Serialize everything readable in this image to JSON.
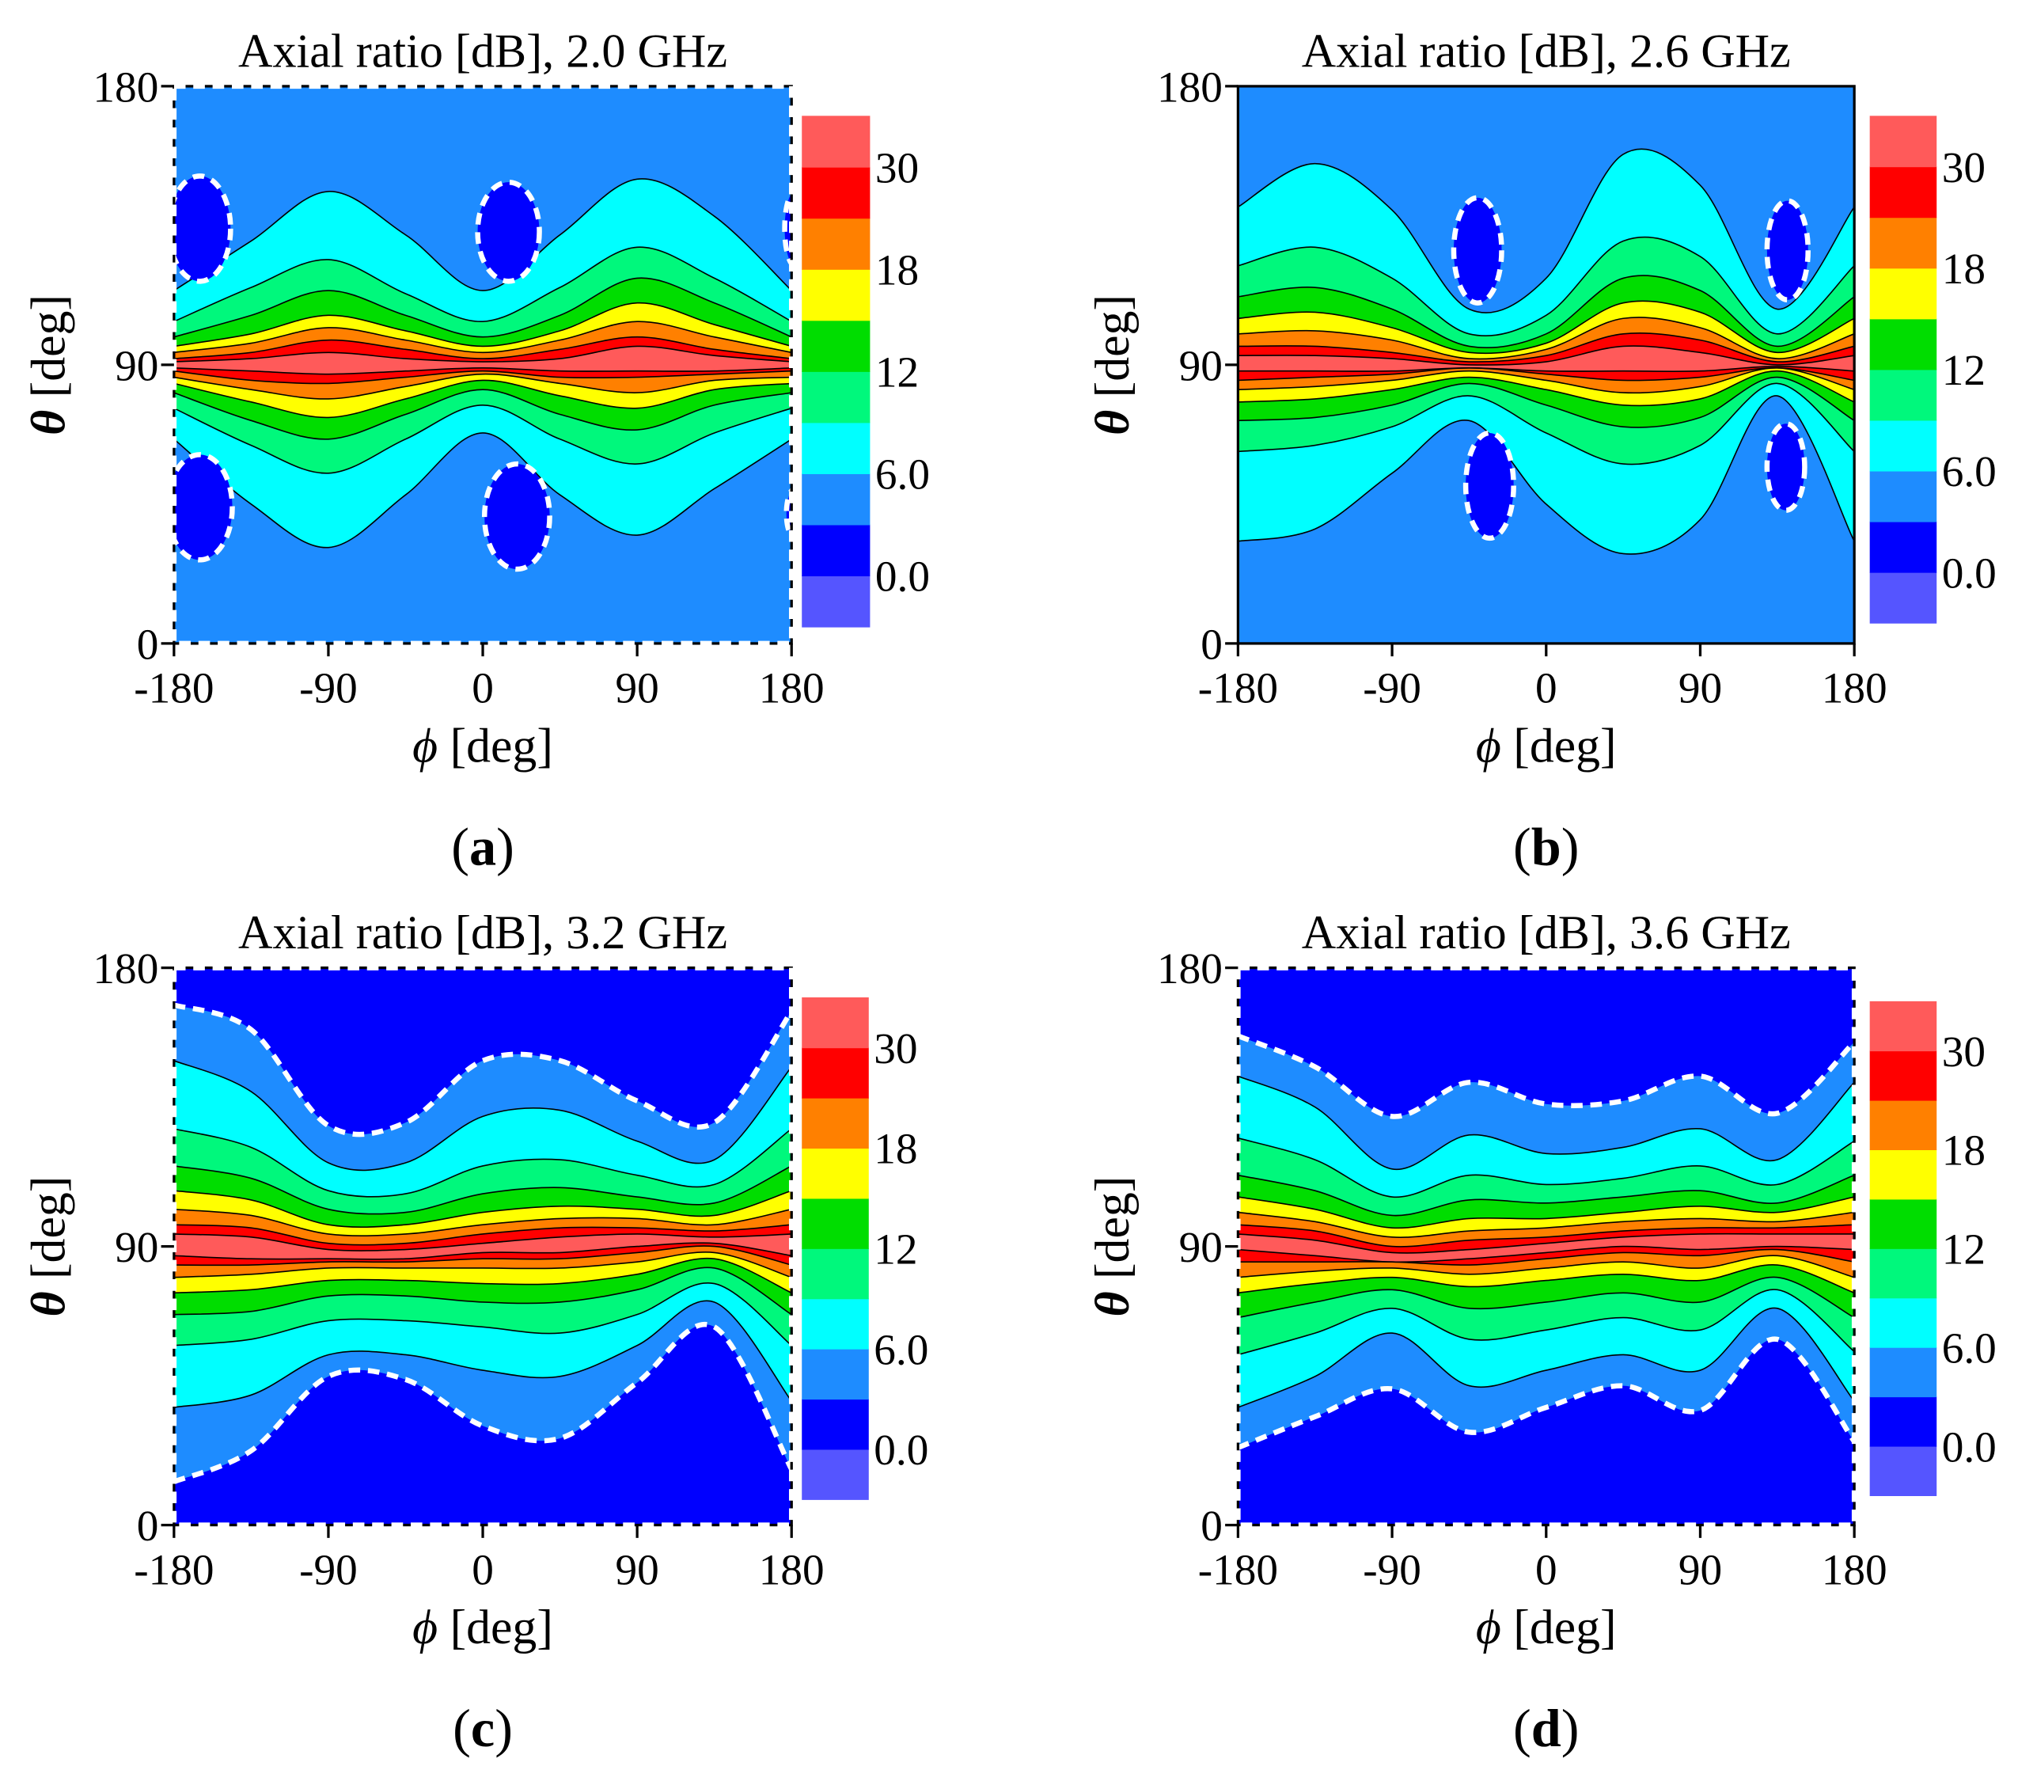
{
  "chart_data": [
    {
      "type": "contour",
      "title": "Axial ratio [dB], 2.0 GHz",
      "xlabel": "ϕ [deg]",
      "ylabel": "θ [deg]",
      "panel": "(a)",
      "xlim": [
        -180,
        180
      ],
      "ylim": [
        0,
        180
      ],
      "xticks": [
        -180,
        -90,
        0,
        90,
        180
      ],
      "yticks": [
        0,
        90,
        180
      ],
      "edge_dashed": true,
      "x": [
        -180,
        -135,
        -90,
        -45,
        0,
        45,
        90,
        135,
        180
      ],
      "background_level": 3,
      "island_level": 0,
      "contours": [
        {
          "level": 6,
          "upper": [
            114,
            130,
            146,
            132,
            114,
            132,
            150,
            138,
            114
          ],
          "lower": [
            66,
            45,
            31,
            48,
            68,
            48,
            35,
            50,
            66
          ]
        },
        {
          "level": 9,
          "upper": [
            104,
            115,
            124,
            113,
            104,
            115,
            128,
            118,
            104
          ],
          "lower": [
            76,
            64,
            55,
            66,
            77,
            66,
            58,
            68,
            76
          ]
        },
        {
          "level": 12,
          "upper": [
            99,
            106,
            114,
            106,
            99,
            106,
            118,
            110,
            99
          ],
          "lower": [
            81,
            72,
            66,
            74,
            82,
            74,
            69,
            77,
            81
          ]
        },
        {
          "level": 15,
          "upper": [
            96,
            100,
            106,
            101,
            96,
            101,
            110,
            103,
            96
          ],
          "lower": [
            84,
            78,
            73,
            79,
            85,
            80,
            76,
            82,
            84
          ]
        },
        {
          "level": 18,
          "upper": [
            94,
            97,
            102,
            98,
            94,
            98,
            104,
            99,
            94
          ],
          "lower": [
            86,
            82,
            79,
            83,
            87,
            84,
            81,
            85,
            86
          ]
        },
        {
          "level": 24,
          "upper": [
            92,
            94,
            98,
            95,
            92,
            95,
            99,
            95,
            92
          ],
          "lower": [
            88,
            85,
            84,
            86,
            88,
            86,
            86,
            87,
            88
          ]
        },
        {
          "level": 30,
          "upper": [
            91,
            92,
            94,
            92,
            91,
            92,
            96,
            93,
            91
          ],
          "lower": [
            89,
            88,
            87,
            88,
            89,
            88,
            88,
            88,
            89
          ]
        }
      ],
      "islands": [
        {
          "x": -165,
          "y": 134,
          "rx": 18,
          "ry": 17
        },
        {
          "x": 15,
          "y": 133,
          "rx": 18,
          "ry": 16
        },
        {
          "x": 182,
          "y": 134,
          "rx": 6,
          "ry": 12
        },
        {
          "x": -165,
          "y": 44,
          "rx": 19,
          "ry": 17
        },
        {
          "x": 20,
          "y": 41,
          "rx": 19,
          "ry": 17
        },
        {
          "x": 182,
          "y": 42,
          "rx": 5,
          "ry": 8
        }
      ],
      "colorbar": {
        "levels": [
          -3,
          0,
          3,
          6,
          9,
          12,
          15,
          18,
          24,
          30,
          36
        ],
        "colors": [
          "#5555ff",
          "#0000ff",
          "#1e8cff",
          "#00ffff",
          "#00f87c",
          "#00dd00",
          "#ffff00",
          "#ff8000",
          "#ff0000",
          "#ff5a5a"
        ],
        "ticks": [
          {
            "value": 0,
            "label": "0.0"
          },
          {
            "value": 6,
            "label": "6.0"
          },
          12,
          18,
          30
        ]
      }
    },
    {
      "type": "contour",
      "title": "Axial ratio [dB], 2.6 GHz",
      "xlabel": "ϕ [deg]",
      "ylabel": "θ [deg]",
      "panel": "(b)",
      "xlim": [
        -180,
        180
      ],
      "ylim": [
        0,
        180
      ],
      "xticks": [
        -180,
        -90,
        0,
        90,
        180
      ],
      "yticks": [
        0,
        90,
        180
      ],
      "edge_dashed": false,
      "x": [
        -180,
        -135,
        -90,
        -45,
        0,
        45,
        90,
        135,
        180
      ],
      "background_level": 3,
      "island_level": 0,
      "contours": [
        {
          "level": 6,
          "upper": [
            141,
            155,
            140,
            108,
            118,
            158,
            148,
            108,
            141
          ],
          "lower": [
            33,
            37,
            55,
            72,
            45,
            29,
            40,
            80,
            33
          ]
        },
        {
          "level": 9,
          "upper": [
            122,
            128,
            118,
            100,
            106,
            130,
            125,
            100,
            122
          ],
          "lower": [
            62,
            64,
            70,
            80,
            68,
            58,
            64,
            84,
            62
          ]
        },
        {
          "level": 12,
          "upper": [
            112,
            115,
            108,
            96,
            100,
            118,
            114,
            96,
            112
          ],
          "lower": [
            72,
            73,
            77,
            84,
            77,
            70,
            73,
            86,
            72
          ]
        },
        {
          "level": 15,
          "upper": [
            105,
            107,
            102,
            94,
            97,
            110,
            107,
            94,
            105
          ],
          "lower": [
            78,
            79,
            82,
            86,
            82,
            77,
            79,
            88,
            78
          ]
        },
        {
          "level": 18,
          "upper": [
            100,
            101,
            98,
            92,
            95,
            105,
            102,
            92,
            100
          ],
          "lower": [
            82,
            83,
            85,
            88,
            85,
            81,
            83,
            89,
            82
          ]
        },
        {
          "level": 24,
          "upper": [
            96,
            96,
            94,
            91,
            93,
            100,
            98,
            91,
            96
          ],
          "lower": [
            85,
            86,
            87,
            89,
            87,
            85,
            86,
            89,
            85
          ]
        },
        {
          "level": 30,
          "upper": [
            93,
            93,
            92,
            90,
            91,
            96,
            94,
            90,
            93
          ],
          "lower": [
            88,
            88,
            88,
            89,
            88,
            88,
            88,
            89.5,
            88
          ]
        }
      ],
      "islands": [
        {
          "x": -40,
          "y": 127,
          "rx": 14,
          "ry": 17
        },
        {
          "x": 141,
          "y": 127,
          "rx": 12,
          "ry": 16
        },
        {
          "x": -33,
          "y": 51,
          "rx": 14,
          "ry": 17
        },
        {
          "x": 140,
          "y": 57,
          "rx": 11,
          "ry": 14
        }
      ],
      "colorbar": {
        "levels": [
          -3,
          0,
          3,
          6,
          9,
          12,
          15,
          18,
          24,
          30,
          36
        ],
        "colors": [
          "#5555ff",
          "#0000ff",
          "#1e8cff",
          "#00ffff",
          "#00f87c",
          "#00dd00",
          "#ffff00",
          "#ff8000",
          "#ff0000",
          "#ff5a5a"
        ],
        "ticks": [
          {
            "value": 0,
            "label": "0.0"
          },
          {
            "value": 6,
            "label": "6.0"
          },
          12,
          18,
          30
        ]
      }
    },
    {
      "type": "contour",
      "title": "Axial ratio [dB], 3.2 GHz",
      "xlabel": "ϕ [deg]",
      "ylabel": "θ [deg]",
      "panel": "(c)",
      "xlim": [
        -180,
        180
      ],
      "ylim": [
        0,
        180
      ],
      "xticks": [
        -180,
        -90,
        0,
        90,
        180
      ],
      "yticks": [
        0,
        90,
        180
      ],
      "edge_dashed": true,
      "x": [
        -180,
        -135,
        -90,
        -45,
        0,
        45,
        90,
        135,
        180
      ],
      "background_level": 0,
      "island_level": 0,
      "contours": [
        {
          "level": 3,
          "upper": [
            168,
            160,
            129,
            130,
            150,
            150,
            137,
            130,
            166
          ],
          "lower": [
            14,
            24,
            48,
            47,
            32,
            28,
            46,
            64,
            18
          ],
          "dashed": true
        },
        {
          "level": 6,
          "upper": [
            150,
            140,
            117,
            117,
            132,
            134,
            124,
            118,
            148
          ],
          "lower": [
            38,
            42,
            55,
            55,
            50,
            48,
            58,
            72,
            40
          ]
        },
        {
          "level": 9,
          "upper": [
            128,
            122,
            108,
            107,
            116,
            118,
            113,
            110,
            128
          ],
          "lower": [
            58,
            60,
            66,
            66,
            64,
            62,
            68,
            78,
            58
          ]
        },
        {
          "level": 12,
          "upper": [
            116,
            112,
            102,
            101,
            107,
            109,
            106,
            104,
            116
          ],
          "lower": [
            68,
            69,
            74,
            74,
            72,
            72,
            76,
            83,
            68
          ]
        },
        {
          "level": 15,
          "upper": [
            108,
            105,
            97,
            97,
            101,
            103,
            102,
            100,
            108
          ],
          "lower": [
            75,
            76,
            79,
            79,
            78,
            78,
            81,
            86,
            75
          ]
        },
        {
          "level": 18,
          "upper": [
            102,
            100,
            94,
            94,
            97,
            99,
            99,
            97,
            102
          ],
          "lower": [
            80,
            81,
            83,
            83,
            83,
            83,
            85,
            88,
            80
          ]
        },
        {
          "level": 24,
          "upper": [
            97,
            96,
            91,
            91,
            94,
            96,
            96,
            95,
            97
          ],
          "lower": [
            84,
            84,
            85,
            85,
            86,
            86,
            88,
            90,
            84
          ]
        },
        {
          "level": 30,
          "upper": [
            94,
            93,
            89,
            89,
            91,
            93,
            94,
            93,
            94
          ],
          "lower": [
            87,
            86,
            86,
            86,
            88,
            88,
            90,
            91,
            87
          ]
        }
      ],
      "islands": [],
      "colorbar": {
        "levels": [
          -3,
          0,
          3,
          6,
          9,
          12,
          15,
          18,
          24,
          30,
          36
        ],
        "colors": [
          "#5555ff",
          "#0000ff",
          "#1e8cff",
          "#00ffff",
          "#00f87c",
          "#00dd00",
          "#ffff00",
          "#ff8000",
          "#ff0000",
          "#ff5a5a"
        ],
        "ticks": [
          {
            "value": 0,
            "label": "0.0"
          },
          {
            "value": 6,
            "label": "6.0"
          },
          12,
          18,
          30
        ]
      }
    },
    {
      "type": "contour",
      "title": "Axial ratio [dB], 3.6 GHz",
      "xlabel": "ϕ [deg]",
      "ylabel": "θ [deg]",
      "panel": "(d)",
      "xlim": [
        -180,
        180
      ],
      "ylim": [
        0,
        180
      ],
      "xticks": [
        -180,
        -90,
        0,
        90,
        180
      ],
      "yticks": [
        0,
        90,
        180
      ],
      "edge_dashed": true,
      "x": [
        -180,
        -135,
        -90,
        -45,
        0,
        45,
        90,
        135,
        180
      ],
      "background_level": 0,
      "island_level": 0,
      "contours": [
        {
          "level": 3,
          "upper": [
            158,
            148,
            132,
            143,
            136,
            137,
            145,
            133,
            156
          ],
          "lower": [
            25,
            35,
            44,
            30,
            38,
            45,
            37,
            60,
            27
          ],
          "dashed": true
        },
        {
          "level": 6,
          "upper": [
            145,
            135,
            115,
            126,
            120,
            122,
            128,
            118,
            143
          ],
          "lower": [
            38,
            48,
            62,
            45,
            50,
            55,
            50,
            70,
            40
          ]
        },
        {
          "level": 9,
          "upper": [
            125,
            118,
            106,
            113,
            110,
            112,
            116,
            110,
            124
          ],
          "lower": [
            55,
            62,
            70,
            60,
            63,
            67,
            63,
            76,
            56
          ]
        },
        {
          "level": 12,
          "upper": [
            113,
            108,
            100,
            105,
            104,
            106,
            108,
            104,
            113
          ],
          "lower": [
            67,
            72,
            76,
            70,
            72,
            75,
            72,
            80,
            67
          ]
        },
        {
          "level": 15,
          "upper": [
            106,
            102,
            96,
            99,
            99,
            101,
            103,
            101,
            106
          ],
          "lower": [
            75,
            78,
            80,
            77,
            79,
            81,
            79,
            84,
            75
          ]
        },
        {
          "level": 18,
          "upper": [
            101,
            98,
            93,
            95,
            96,
            98,
            99,
            98,
            101
          ],
          "lower": [
            80,
            82,
            83,
            81,
            83,
            85,
            83,
            87,
            80
          ]
        },
        {
          "level": 24,
          "upper": [
            97,
            95,
            90,
            92,
            93,
            95,
            96,
            96,
            97
          ],
          "lower": [
            85,
            85,
            85,
            84,
            86,
            88,
            87,
            89,
            85
          ]
        },
        {
          "level": 30,
          "upper": [
            94,
            92,
            88,
            89,
            91,
            93,
            94,
            94,
            94
          ],
          "lower": [
            89,
            87,
            85,
            86,
            88,
            90,
            89,
            90,
            89
          ]
        }
      ],
      "islands": [],
      "colorbar": {
        "levels": [
          -3,
          0,
          3,
          6,
          9,
          12,
          15,
          18,
          24,
          30,
          36
        ],
        "colors": [
          "#5555ff",
          "#0000ff",
          "#1e8cff",
          "#00ffff",
          "#00f87c",
          "#00dd00",
          "#ffff00",
          "#ff8000",
          "#ff0000",
          "#ff5a5a"
        ],
        "ticks": [
          {
            "value": 0,
            "label": "0.0"
          },
          {
            "value": 6,
            "label": "6.0"
          },
          12,
          18,
          30
        ]
      }
    }
  ]
}
